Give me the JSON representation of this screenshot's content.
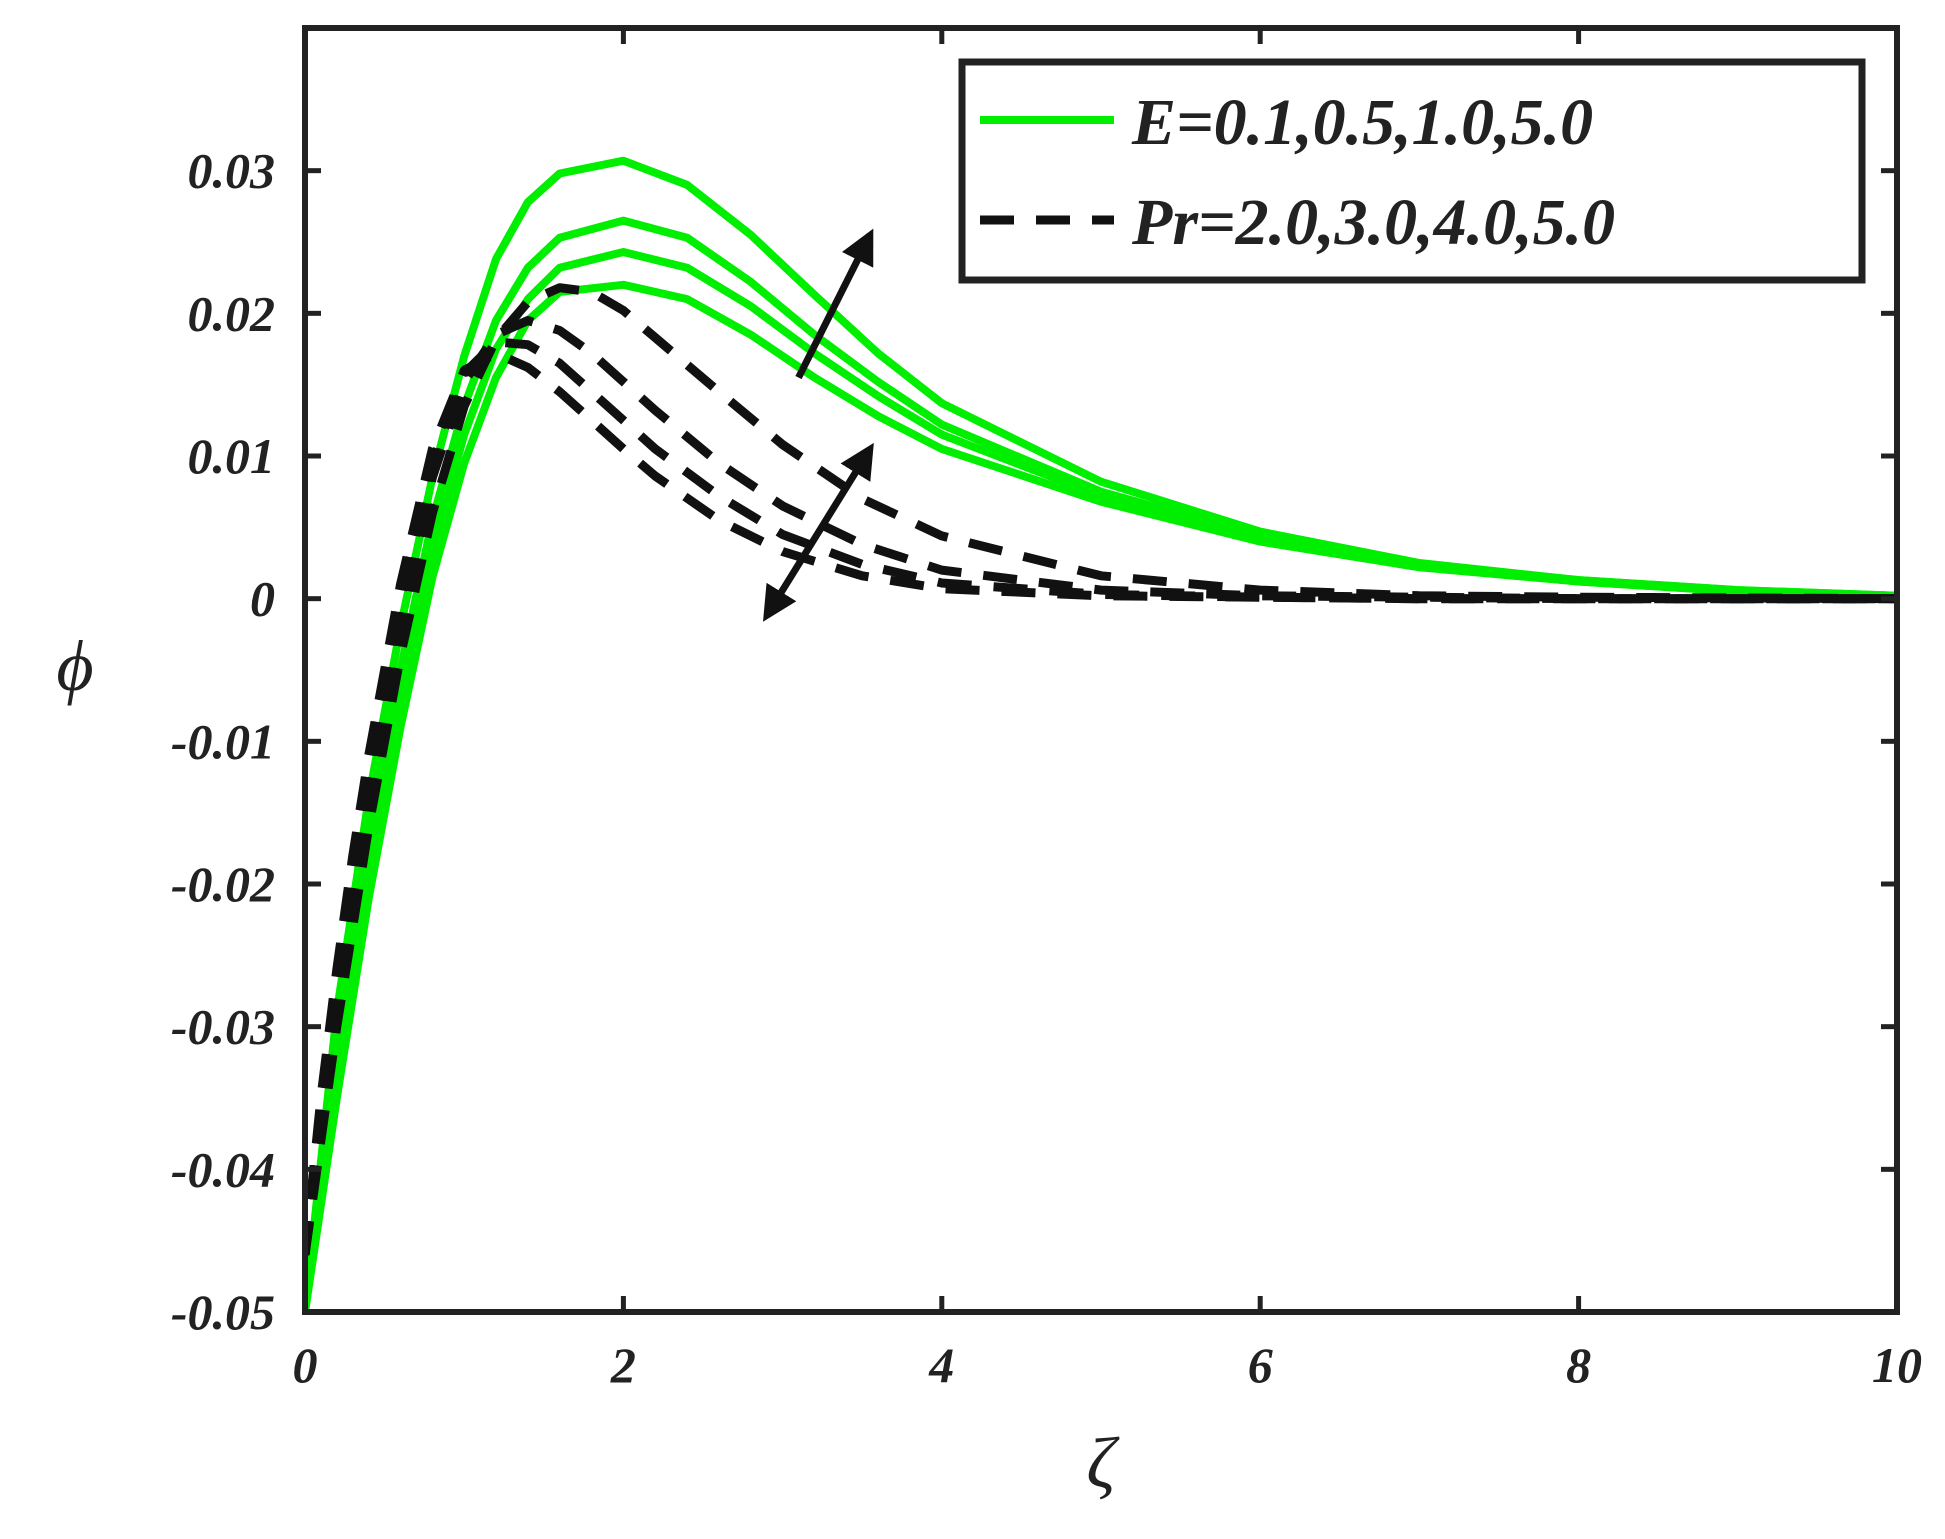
{
  "chart_data": {
    "type": "line",
    "xlabel": "ζ",
    "ylabel": "ϕ",
    "xlim": [
      0,
      10
    ],
    "ylim": [
      -0.05,
      0.04
    ],
    "xticks": [
      "0",
      "2",
      "4",
      "6",
      "8",
      "10"
    ],
    "yticks": [
      "-0.05",
      "-0.04",
      "-0.03",
      "-0.02",
      "-0.01",
      "0",
      "0.01",
      "0.02",
      "0.03"
    ],
    "grid": false,
    "legend": {
      "position": "top-right",
      "entries": [
        {
          "label": "E=0.1,0.5,1.0,5.0",
          "style": "solid",
          "color": "#00ee00"
        },
        {
          "label": "Pr=2.0,3.0,4.0,5.0",
          "style": "dashed",
          "color": "#111111"
        }
      ]
    },
    "series": [
      {
        "group": "E",
        "style": "solid",
        "color": "#00ee00",
        "x": [
          0,
          0.2,
          0.4,
          0.6,
          0.8,
          1.0,
          1.2,
          1.4,
          1.6,
          2.0,
          2.4,
          2.8,
          3.2,
          3.6,
          4.0,
          5.0,
          6.0,
          7.0,
          8.0,
          9.0,
          10.0
        ],
        "y": [
          -0.05,
          -0.035,
          -0.021,
          -0.009,
          0.0015,
          0.0095,
          0.0155,
          0.0195,
          0.0215,
          0.022,
          0.021,
          0.0185,
          0.0155,
          0.0128,
          0.0105,
          0.0068,
          0.004,
          0.0022,
          0.0012,
          0.0005,
          0.0002
        ]
      },
      {
        "group": "E",
        "style": "solid",
        "color": "#00ee00",
        "x": [
          0,
          0.2,
          0.4,
          0.6,
          0.8,
          1.0,
          1.2,
          1.4,
          1.6,
          2.0,
          2.4,
          2.8,
          3.2,
          3.6,
          4.0,
          5.0,
          6.0,
          7.0,
          8.0,
          9.0,
          10.0
        ],
        "y": [
          -0.05,
          -0.033,
          -0.019,
          -0.007,
          0.0035,
          0.0115,
          0.0175,
          0.021,
          0.0232,
          0.0243,
          0.0232,
          0.0205,
          0.0172,
          0.0142,
          0.0115,
          0.0072,
          0.0042,
          0.0023,
          0.0012,
          0.0005,
          0.0002
        ]
      },
      {
        "group": "E",
        "style": "solid",
        "color": "#00ee00",
        "x": [
          0,
          0.2,
          0.4,
          0.6,
          0.8,
          1.0,
          1.2,
          1.4,
          1.6,
          2.0,
          2.4,
          2.8,
          3.2,
          3.6,
          4.0,
          5.0,
          6.0,
          7.0,
          8.0,
          9.0,
          10.0
        ],
        "y": [
          -0.05,
          -0.031,
          -0.017,
          -0.005,
          0.0055,
          0.0135,
          0.0195,
          0.0232,
          0.0253,
          0.0265,
          0.0253,
          0.0222,
          0.0185,
          0.0152,
          0.0122,
          0.0075,
          0.0044,
          0.0024,
          0.0013,
          0.0006,
          0.0002
        ]
      },
      {
        "group": "E",
        "style": "solid",
        "color": "#00ee00",
        "x": [
          0,
          0.2,
          0.4,
          0.6,
          0.8,
          1.0,
          1.2,
          1.4,
          1.6,
          2.0,
          2.4,
          2.8,
          3.2,
          3.6,
          4.0,
          5.0,
          6.0,
          7.0,
          8.0,
          9.0,
          10.0
        ],
        "y": [
          -0.05,
          -0.029,
          -0.014,
          -0.002,
          0.0085,
          0.017,
          0.0238,
          0.0278,
          0.0298,
          0.0307,
          0.029,
          0.0255,
          0.0213,
          0.0172,
          0.0137,
          0.0082,
          0.0047,
          0.0025,
          0.0013,
          0.0006,
          0.0002
        ]
      },
      {
        "group": "Pr",
        "style": "dashed",
        "color": "#111111",
        "x": [
          0,
          0.1,
          0.2,
          0.3,
          0.4,
          0.5,
          0.6,
          0.8,
          1.0,
          1.2,
          1.4,
          1.6,
          1.8,
          2.0,
          2.2,
          2.6,
          3.0,
          3.5,
          4.0,
          5.0,
          6.0,
          7.0,
          8.0,
          10.0
        ],
        "y": [
          -0.046,
          -0.038,
          -0.03,
          -0.023,
          -0.016,
          -0.01,
          -0.004,
          0.006,
          0.0135,
          0.0182,
          0.0208,
          0.0218,
          0.0215,
          0.0202,
          0.0183,
          0.0145,
          0.0108,
          0.007,
          0.0044,
          0.0016,
          0.0006,
          0.0002,
          0.0001,
          0.0
        ]
      },
      {
        "group": "Pr",
        "style": "dashed",
        "color": "#111111",
        "x": [
          0,
          0.1,
          0.2,
          0.3,
          0.4,
          0.5,
          0.6,
          0.8,
          1.0,
          1.2,
          1.4,
          1.6,
          1.8,
          2.0,
          2.2,
          2.6,
          3.0,
          3.5,
          4.0,
          5.0,
          6.0,
          7.0,
          8.0,
          10.0
        ],
        "y": [
          -0.046,
          -0.037,
          -0.029,
          -0.021,
          -0.014,
          -0.008,
          -0.002,
          0.0085,
          0.0152,
          0.0185,
          0.0195,
          0.0188,
          0.0172,
          0.0152,
          0.0132,
          0.0095,
          0.0065,
          0.0038,
          0.002,
          0.0006,
          0.0002,
          0.0001,
          0.0,
          0.0
        ]
      },
      {
        "group": "Pr",
        "style": "dashed",
        "color": "#111111",
        "x": [
          0,
          0.1,
          0.2,
          0.3,
          0.4,
          0.5,
          0.6,
          0.8,
          1.0,
          1.2,
          1.4,
          1.6,
          1.8,
          2.0,
          2.2,
          2.6,
          3.0,
          3.5,
          4.0,
          5.0,
          6.0,
          7.0,
          8.0,
          10.0
        ],
        "y": [
          -0.046,
          -0.036,
          -0.027,
          -0.019,
          -0.012,
          -0.006,
          0.0,
          0.0095,
          0.0158,
          0.018,
          0.0178,
          0.0165,
          0.0145,
          0.0125,
          0.0105,
          0.0072,
          0.0045,
          0.0024,
          0.0011,
          0.0003,
          0.0001,
          0.0,
          0.0,
          0.0
        ]
      },
      {
        "group": "Pr",
        "style": "dashed",
        "color": "#111111",
        "x": [
          0,
          0.1,
          0.2,
          0.3,
          0.4,
          0.5,
          0.6,
          0.8,
          1.0,
          1.2,
          1.4,
          1.6,
          1.8,
          2.0,
          2.2,
          2.6,
          3.0,
          3.5,
          4.0,
          5.0,
          6.0,
          7.0,
          8.0,
          10.0
        ],
        "y": [
          -0.046,
          -0.035,
          -0.026,
          -0.018,
          -0.011,
          -0.005,
          0.001,
          0.0105,
          0.016,
          0.0172,
          0.0162,
          0.0145,
          0.0125,
          0.0105,
          0.0086,
          0.0055,
          0.0033,
          0.0016,
          0.0007,
          0.0002,
          0.0001,
          0.0,
          0.0,
          0.0
        ]
      }
    ],
    "annotations": [
      {
        "type": "arrow",
        "description": "increasing E",
        "from": [
          3.1,
          0.0155
        ],
        "to": [
          3.55,
          0.0255
        ],
        "double": false
      },
      {
        "type": "arrow",
        "description": "increasing Pr",
        "from": [
          3.55,
          0.0105
        ],
        "to": [
          2.9,
          -0.0012
        ],
        "double": true
      }
    ]
  }
}
